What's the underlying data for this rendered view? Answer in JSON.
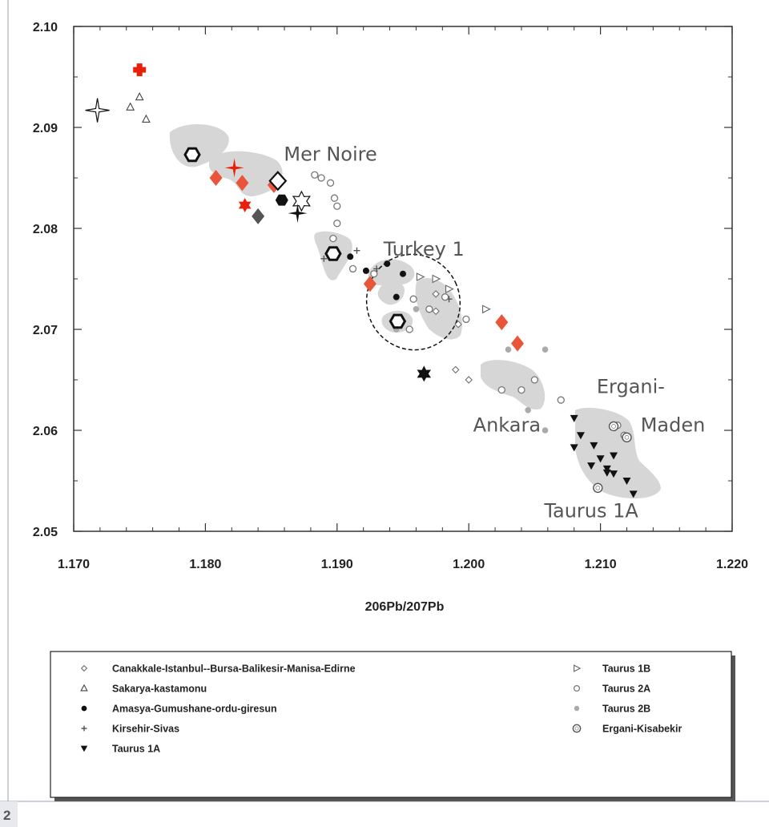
{
  "page_number": "2",
  "colors": {
    "red_marker": "#e8200a",
    "orange_marker": "#e8553a",
    "field_gray": "#d6d6d6",
    "dark_gray_marker": "#555555"
  },
  "chart_data": {
    "type": "scatter",
    "title": "",
    "xlabel": "206Pb/207Pb",
    "ylabel": "",
    "xlim": [
      1.17,
      1.22
    ],
    "ylim": [
      2.05,
      2.1
    ],
    "x_ticks": [
      "1.170",
      "1.180",
      "1.190",
      "1.200",
      "1.210",
      "1.220"
    ],
    "y_ticks": [
      "2.05",
      "2.06",
      "2.07",
      "2.08",
      "2.09",
      "2.10"
    ],
    "grid": false,
    "legend_position": "bottom",
    "region_labels": [
      {
        "text": "Mer Noire",
        "x": 1.1895,
        "y": 2.0867
      },
      {
        "text": "Turkey 1",
        "x": 1.1966,
        "y": 2.0773
      },
      {
        "text": "Ankara",
        "x": 1.2029,
        "y": 2.0599
      },
      {
        "text": "Ergani-",
        "x": 1.2123,
        "y": 2.0637
      },
      {
        "text": "Maden",
        "x": 1.2155,
        "y": 2.0599
      },
      {
        "text": "Taurus 1A",
        "x": 1.2093,
        "y": 2.0514
      }
    ],
    "legend": [
      {
        "label": "Canakkale-Istanbul--Bursa-Balikesir-Manisa-Edirne",
        "symbol": "open-diamond"
      },
      {
        "label": "Sakarya-kastamonu",
        "symbol": "open-triangle"
      },
      {
        "label": "Amasya-Gumushane-ordu-giresun",
        "symbol": "filled-circle"
      },
      {
        "label": "Kirsehir-Sivas",
        "symbol": "plus"
      },
      {
        "label": "Taurus 1A",
        "symbol": "filled-down-triangle"
      },
      {
        "label": "Taurus 1B",
        "symbol": "open-right-triangle"
      },
      {
        "label": "Taurus 2A",
        "symbol": "open-circle"
      },
      {
        "label": "Taurus 2B",
        "symbol": "gray-dot"
      },
      {
        "label": "Ergani-Kisabekir",
        "symbol": "double-circle"
      }
    ],
    "series": [
      {
        "symbol": "open-diamond",
        "points": [
          [
            1.1975,
            2.0718
          ],
          [
            1.199,
            2.066
          ],
          [
            1.2,
            2.065
          ],
          [
            1.1975,
            2.0735
          ],
          [
            1.1992,
            2.0705
          ]
        ]
      },
      {
        "symbol": "open-triangle",
        "points": [
          [
            1.1743,
            2.092
          ],
          [
            1.175,
            2.093
          ],
          [
            1.1755,
            2.0908
          ]
        ]
      },
      {
        "symbol": "filled-circle",
        "points": [
          [
            1.191,
            2.0772
          ],
          [
            1.1938,
            2.0765
          ],
          [
            1.195,
            2.0755
          ],
          [
            1.1945,
            2.0732
          ],
          [
            1.1922,
            2.0758
          ]
        ]
      },
      {
        "symbol": "plus",
        "points": [
          [
            1.1915,
            2.0778
          ],
          [
            1.193,
            2.076
          ],
          [
            1.1985,
            2.073
          ],
          [
            1.189,
            2.077
          ]
        ]
      },
      {
        "symbol": "filled-down-triangle",
        "points": [
          [
            1.208,
            2.0612
          ],
          [
            1.2085,
            2.0595
          ],
          [
            1.208,
            2.0583
          ],
          [
            1.2095,
            2.0585
          ],
          [
            1.2093,
            2.0565
          ],
          [
            1.21,
            2.0572
          ],
          [
            1.2105,
            2.0562
          ],
          [
            1.211,
            2.0575
          ],
          [
            1.211,
            2.0557
          ],
          [
            1.212,
            2.055
          ],
          [
            1.2125,
            2.0537
          ],
          [
            1.2105,
            2.0558
          ]
        ]
      },
      {
        "symbol": "open-right-triangle",
        "points": [
          [
            1.1963,
            2.0752
          ],
          [
            1.1985,
            2.074
          ],
          [
            1.2013,
            2.072
          ],
          [
            1.1975,
            2.075
          ]
        ]
      },
      {
        "symbol": "open-circle",
        "points": [
          [
            1.1888,
            2.085
          ],
          [
            1.1895,
            2.0845
          ],
          [
            1.1883,
            2.0853
          ],
          [
            1.1898,
            2.083
          ],
          [
            1.19,
            2.0822
          ],
          [
            1.19,
            2.0805
          ],
          [
            1.1897,
            2.079
          ],
          [
            1.1912,
            2.076
          ],
          [
            1.1928,
            2.0755
          ],
          [
            1.1958,
            2.073
          ],
          [
            1.197,
            2.072
          ],
          [
            1.1982,
            2.0732
          ],
          [
            1.1998,
            2.071
          ],
          [
            1.1955,
            2.07
          ],
          [
            1.2025,
            2.064
          ],
          [
            1.204,
            2.064
          ],
          [
            1.205,
            2.065
          ],
          [
            1.207,
            2.063
          ],
          [
            1.2113,
            2.0605
          ],
          [
            1.2118,
            2.0595
          ]
        ]
      },
      {
        "symbol": "gray-dot",
        "points": [
          [
            1.2045,
            2.062
          ],
          [
            1.2058,
            2.06
          ],
          [
            1.2058,
            2.068
          ],
          [
            1.203,
            2.068
          ],
          [
            1.1945,
            2.07
          ],
          [
            1.196,
            2.072
          ]
        ]
      },
      {
        "symbol": "double-circle",
        "points": [
          [
            1.211,
            2.0604
          ],
          [
            1.212,
            2.0593
          ],
          [
            1.2098,
            2.0543
          ]
        ]
      },
      {
        "symbol": "red-cross",
        "points": [
          [
            1.175,
            2.0957
          ]
        ]
      },
      {
        "symbol": "red-star",
        "points": [
          [
            1.1822,
            2.086
          ]
        ]
      },
      {
        "symbol": "red-flower",
        "points": [
          [
            1.183,
            2.0823
          ]
        ]
      },
      {
        "symbol": "orange-diamond",
        "points": [
          [
            1.1808,
            2.085
          ],
          [
            1.1828,
            2.0845
          ],
          [
            1.1852,
            2.0843
          ],
          [
            1.1925,
            2.0745
          ],
          [
            1.2025,
            2.0707
          ],
          [
            1.2037,
            2.0686
          ]
        ]
      },
      {
        "symbol": "dark-gray-diamond",
        "points": [
          [
            1.184,
            2.0812
          ]
        ]
      },
      {
        "symbol": "open-large-diamond",
        "points": [
          [
            1.1855,
            2.0847
          ]
        ]
      },
      {
        "symbol": "open-hexagon",
        "points": [
          [
            1.179,
            2.0873
          ],
          [
            1.1897,
            2.0775
          ],
          [
            1.1946,
            2.0708
          ]
        ]
      },
      {
        "symbol": "black-hexagon",
        "points": [
          [
            1.1858,
            2.0828
          ]
        ]
      },
      {
        "symbol": "open-star6",
        "points": [
          [
            1.1873,
            2.0827
          ]
        ]
      },
      {
        "symbol": "black-star6",
        "points": [
          [
            1.1966,
            2.0656
          ]
        ]
      },
      {
        "symbol": "black-star4",
        "points": [
          [
            1.187,
            2.0815
          ]
        ]
      },
      {
        "symbol": "open-star4",
        "points": [
          [
            1.1718,
            2.0917
          ]
        ]
      }
    ]
  }
}
